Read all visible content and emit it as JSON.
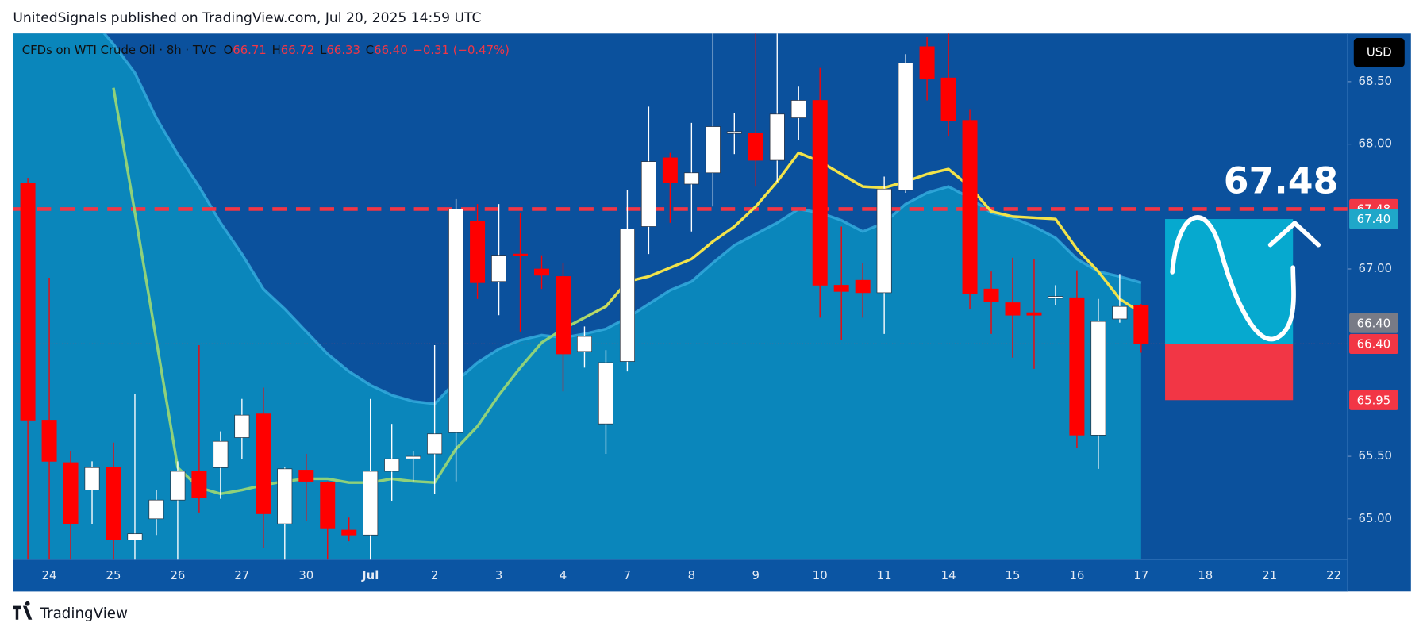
{
  "header": {
    "published": "UnitedSignals published on TradingView.com, Jul 20, 2025 14:59 UTC",
    "brand": "TradingView"
  },
  "chart_data": {
    "type": "candlestick",
    "legend": {
      "symbol": "CFDs on WTI Crude Oil · 8h · TVC",
      "ohlc": [
        {
          "key": "O",
          "value": "66.71"
        },
        {
          "key": "H",
          "value": "66.72"
        },
        {
          "key": "L",
          "value": "66.33"
        },
        {
          "key": "C",
          "value": "66.40"
        }
      ],
      "change": "−0.31 (−0.47%)"
    },
    "currency": "USD",
    "date_labels": [
      "24",
      "25",
      "26",
      "27",
      "30",
      "Jul",
      "2",
      "3",
      "4",
      "7",
      "8",
      "9",
      "10",
      "11",
      "14",
      "15",
      "16",
      "17",
      "18",
      "21",
      "22"
    ],
    "open": [
      67.69,
      65.79,
      65.45,
      65.23,
      65.41,
      64.83,
      65.0,
      65.15,
      65.38,
      65.41,
      65.65,
      65.84,
      64.96,
      65.39,
      65.29,
      64.91,
      64.87,
      65.38,
      65.48,
      65.52,
      65.69,
      67.38,
      66.9,
      67.12,
      67.0,
      66.94,
      66.34,
      65.76,
      66.26,
      67.34,
      67.89,
      67.68,
      67.77,
      68.09,
      68.09,
      67.87,
      68.21,
      68.35,
      66.87,
      66.91,
      66.81,
      67.63,
      68.78,
      68.53,
      68.19,
      66.84,
      66.73,
      66.65,
      66.77,
      66.77,
      65.67,
      66.6,
      66.71
    ],
    "high": [
      67.73,
      66.93,
      65.54,
      65.46,
      65.61,
      66.0,
      65.23,
      65.46,
      66.39,
      65.7,
      65.96,
      66.05,
      65.41,
      65.52,
      65.3,
      65.01,
      65.96,
      65.76,
      65.54,
      66.39,
      67.56,
      67.52,
      67.52,
      67.45,
      67.11,
      67.05,
      66.54,
      66.35,
      67.63,
      68.3,
      67.93,
      68.17,
      68.95,
      68.25,
      68.95,
      68.95,
      68.46,
      68.61,
      67.34,
      67.05,
      67.74,
      68.72,
      68.86,
      68.95,
      68.28,
      66.98,
      67.09,
      67.08,
      66.87,
      66.99,
      66.76,
      66.96,
      66.72
    ],
    "low": [
      64.5,
      64.5,
      64.5,
      64.96,
      64.5,
      64.5,
      64.87,
      64.5,
      65.05,
      65.16,
      65.48,
      64.77,
      64.5,
      64.98,
      64.5,
      64.82,
      64.5,
      65.14,
      65.3,
      65.2,
      65.3,
      66.76,
      66.63,
      66.5,
      66.84,
      66.02,
      66.21,
      65.52,
      66.18,
      67.12,
      67.37,
      67.3,
      67.5,
      67.92,
      67.66,
      67.7,
      68.03,
      66.61,
      66.43,
      66.61,
      66.48,
      67.61,
      68.35,
      68.06,
      66.68,
      66.48,
      66.29,
      66.2,
      66.71,
      65.57,
      65.4,
      66.57,
      66.33
    ],
    "close": [
      65.79,
      65.46,
      64.96,
      65.41,
      64.83,
      64.88,
      65.15,
      65.38,
      65.17,
      65.62,
      65.83,
      65.04,
      65.4,
      65.3,
      64.92,
      64.87,
      65.38,
      65.48,
      65.5,
      65.68,
      67.48,
      66.89,
      67.11,
      67.11,
      66.95,
      66.32,
      66.46,
      66.25,
      67.32,
      67.86,
      67.69,
      67.77,
      68.14,
      68.1,
      67.87,
      68.24,
      68.35,
      66.87,
      66.82,
      66.81,
      67.64,
      68.65,
      68.52,
      68.19,
      66.8,
      66.74,
      66.63,
      66.63,
      66.78,
      65.67,
      66.58,
      66.7,
      66.4
    ],
    "up_color": "#ffffff",
    "down_color": "#ff0000",
    "band": {
      "color": "#0a86bb",
      "edge": "#36aee0",
      "values": [
        69.6,
        69.4,
        69.2,
        69.0,
        68.8,
        68.57,
        68.21,
        67.92,
        67.66,
        67.37,
        67.12,
        66.84,
        66.68,
        66.5,
        66.32,
        66.18,
        66.07,
        65.99,
        65.94,
        65.92,
        66.1,
        66.25,
        66.36,
        66.43,
        66.47,
        66.45,
        66.48,
        66.52,
        66.61,
        66.72,
        66.83,
        66.9,
        67.05,
        67.19,
        67.28,
        67.37,
        67.48,
        67.45,
        67.39,
        67.3,
        67.37,
        67.52,
        67.61,
        67.66,
        67.57,
        67.45,
        67.41,
        67.34,
        67.25,
        67.08,
        66.98,
        66.94,
        66.89
      ]
    },
    "line": {
      "colors": [
        "#8fd17a",
        "#f2e34a"
      ],
      "values": [
        null,
        null,
        null,
        null,
        68.45,
        67.45,
        66.43,
        65.41,
        65.25,
        65.2,
        65.23,
        65.27,
        65.3,
        65.32,
        65.32,
        65.29,
        65.29,
        65.32,
        65.3,
        65.29,
        65.56,
        65.74,
        65.99,
        66.21,
        66.41,
        66.52,
        66.61,
        66.7,
        66.9,
        66.94,
        67.01,
        67.08,
        67.22,
        67.34,
        67.5,
        67.7,
        67.93,
        67.86,
        67.76,
        67.66,
        67.65,
        67.7,
        67.76,
        67.8,
        67.66,
        67.46,
        67.42,
        67.41,
        67.4,
        67.16,
        66.98,
        66.76,
        66.65
      ]
    },
    "levels": [
      {
        "value": 67.48,
        "color": "#f23645",
        "style": "dashed"
      },
      {
        "value": 66.4,
        "color": "#f23645",
        "style": "dotted"
      }
    ],
    "position": {
      "target": 67.4,
      "entry": 66.4,
      "stop": 65.95,
      "target_color": "#06a9cf",
      "stop_color": "#f23645"
    },
    "annotation": "67.48",
    "price_labels": [
      {
        "value": 67.48,
        "label": "67.48",
        "color": "#f23645"
      },
      {
        "value": 67.4,
        "label": "67.40",
        "color": "#1fa7c9"
      },
      {
        "value": 66.4,
        "label": "66.40",
        "color": "#787b86"
      },
      {
        "value": 66.4,
        "label": "66.40",
        "color": "#f23645"
      },
      {
        "value": 65.95,
        "label": "65.95",
        "color": "#f23645"
      }
    ],
    "ylim": [
      64.673,
      68.885
    ],
    "yticks": [
      {
        "value": 65,
        "label": "65.00"
      },
      {
        "value": 65.5,
        "label": "65.50"
      },
      {
        "value": 67,
        "label": "67.00"
      },
      {
        "value": 68,
        "label": "68.00"
      },
      {
        "value": 68.5,
        "label": "68.50"
      }
    ],
    "grid": false
  }
}
